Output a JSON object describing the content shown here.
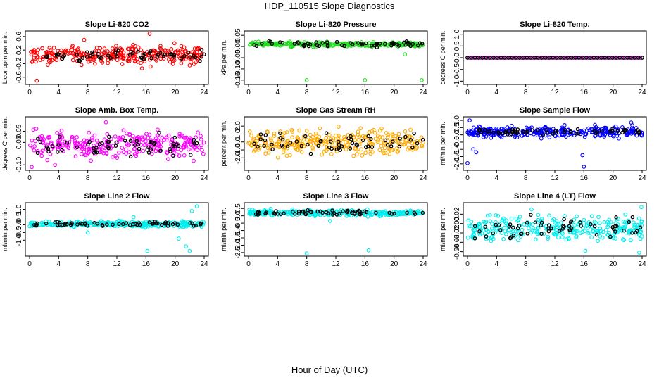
{
  "figure": {
    "title": "HDP_110515  Slope Diagnostics",
    "xlabel": "Hour of Day (UTC)"
  },
  "colors": {
    "red": "#ff0000",
    "green": "#22dd22",
    "magenta": "#ff00ff",
    "orange": "#ffaa00",
    "blue": "#0000ff",
    "cyan": "#00eeee",
    "black": "#000000"
  },
  "chart_data": [
    {
      "type": "scatter",
      "title": "Slope Li-820 CO2",
      "ylabel": "Licor ppm per min.",
      "xlim": [
        0,
        24
      ],
      "xticks": [
        0,
        4,
        8,
        12,
        16,
        20,
        24
      ],
      "ylim": [
        -0.75,
        0.7
      ],
      "yticks": [
        -0.6,
        -0.2,
        0.2,
        0.6
      ],
      "ytick_labels": [
        "-0.6",
        "-0.2",
        "0.2",
        "0.6"
      ],
      "color": "#ff0000",
      "center": 0.05,
      "spread": 0.18,
      "outliers": [
        [
          1.0,
          -0.7
        ],
        [
          16.5,
          0.68
        ],
        [
          7.5,
          0.5
        ]
      ],
      "black_spread": 0.12
    },
    {
      "type": "scatter",
      "title": "Slope Li-820 Pressure",
      "ylabel": "kPa per min.",
      "xlim": [
        0,
        24
      ],
      "xticks": [
        0,
        4,
        8,
        12,
        16,
        20,
        24
      ],
      "ylim": [
        -0.16,
        0.06
      ],
      "yticks": [
        -0.15,
        -0.1,
        -0.05,
        0,
        0.05
      ],
      "ytick_labels": [
        "-0.15",
        "-0.10",
        "-0.05",
        "0.00",
        "0.05"
      ],
      "color": "#22dd22",
      "center": 0.01,
      "spread": 0.006,
      "outliers": [
        [
          8.0,
          -0.15
        ],
        [
          16.0,
          -0.15
        ],
        [
          23.8,
          -0.15
        ],
        [
          21.5,
          -0.035
        ]
      ],
      "black_spread": 0.008
    },
    {
      "type": "scatter",
      "title": "Slope Li-820 Temp.",
      "ylabel": "degrees C per min.",
      "xlim": [
        0,
        24
      ],
      "xticks": [
        0,
        4,
        8,
        12,
        16,
        20,
        24
      ],
      "ylim": [
        -1.05,
        1.05
      ],
      "yticks": [
        -1.0,
        -0.5,
        0.0,
        0.5,
        1.0
      ],
      "ytick_labels": [
        "-1.0",
        "-0.5",
        "0.0",
        "0.5",
        "1.0"
      ],
      "color": "#ff00ff",
      "center": 0.0,
      "spread": 0.0,
      "outliers": [],
      "black_spread": 0.0
    },
    {
      "type": "scatter",
      "title": "Slope Amb. Box Temp.",
      "ylabel": "degrees C per min.",
      "xlim": [
        0,
        24
      ],
      "xticks": [
        0,
        4,
        8,
        12,
        16,
        20,
        24
      ],
      "ylim": [
        -0.115,
        0.105
      ],
      "yticks": [
        -0.1,
        0.0,
        0.05
      ],
      "ytick_labels": [
        "-0.10",
        "0.00",
        "0.05"
      ],
      "color": "#ff00ff",
      "center": -0.01,
      "spread": 0.04,
      "outliers": [
        [
          0.3,
          -0.11
        ],
        [
          10.5,
          0.09
        ],
        [
          3.5,
          -0.1
        ]
      ],
      "black_spread": 0.03
    },
    {
      "type": "scatter",
      "title": "Slope Gas Stream RH",
      "ylabel": "percent per min.",
      "xlim": [
        0,
        24
      ],
      "xticks": [
        0,
        4,
        8,
        12,
        16,
        20,
        24
      ],
      "ylim": [
        -3.3,
        2.9
      ],
      "yticks": [
        -2.0,
        -1.0,
        0.0,
        1.0,
        2.0
      ],
      "ytick_labels": [
        "-2.0",
        "-1.0",
        "0.0",
        "1.0",
        "2.0"
      ],
      "color": "#ffaa00",
      "center": 0.0,
      "spread": 1.0,
      "outliers": [],
      "black_spread": 0.8
    },
    {
      "type": "scatter",
      "title": "Slope Sample Flow",
      "ylabel": "ml/min per min.",
      "xlim": [
        0,
        24
      ],
      "xticks": [
        0,
        4,
        8,
        12,
        16,
        20,
        24
      ],
      "ylim": [
        -2.3,
        1.1
      ],
      "yticks": [
        -2.0,
        -1.5,
        -1.0,
        -0.5,
        0.0,
        0.5,
        1.0
      ],
      "ytick_labels": [
        "-2.0",
        "-1.5",
        "-1.0",
        "-0.5",
        "0.0",
        "0.5",
        "1.0"
      ],
      "color": "#0000ff",
      "center": 0.2,
      "spread": 0.25,
      "outliers": [
        [
          0.0,
          -1.95
        ],
        [
          0.3,
          1.0
        ],
        [
          0.8,
          -1.0
        ],
        [
          1.2,
          -1.2
        ],
        [
          16.0,
          -2.2
        ],
        [
          15.8,
          -1.4
        ],
        [
          22.5,
          0.85
        ]
      ],
      "black_spread": 0.15
    },
    {
      "type": "scatter",
      "title": "Slope Line 2 Flow",
      "ylabel": "ml/min per min.",
      "xlim": [
        0,
        24
      ],
      "xticks": [
        0,
        4,
        8,
        12,
        16,
        20,
        24
      ],
      "ylim": [
        -1.9,
        1.3
      ],
      "yticks": [
        -1.0,
        -0.5,
        0.0,
        0.5,
        1.0
      ],
      "ytick_labels": [
        "-1.0",
        "-0.5",
        "0.0",
        "0.5",
        "1.0"
      ],
      "color": "#00eeee",
      "center": 0.05,
      "spread": 0.12,
      "outliers": [
        [
          16.2,
          -1.7
        ],
        [
          22.0,
          -1.7
        ],
        [
          21.5,
          -1.4
        ],
        [
          23.0,
          1.2
        ],
        [
          22.3,
          0.9
        ],
        [
          8.0,
          -0.5
        ],
        [
          14.3,
          0.5
        ],
        [
          20.5,
          -0.9
        ]
      ],
      "black_spread": 0.1
    },
    {
      "type": "scatter",
      "title": "Slope Line 3 Flow",
      "ylabel": "ml/min per min.",
      "xlim": [
        0,
        24
      ],
      "xticks": [
        0,
        4,
        8,
        12,
        16,
        20,
        24
      ],
      "ylim": [
        -2.6,
        0.75
      ],
      "yticks": [
        -2.5,
        -2.0,
        -1.5,
        -1.0,
        -0.5,
        0.0,
        0.5
      ],
      "ytick_labels": [
        "-2.5",
        "-2.0",
        "-1.5",
        "-1.0",
        "-0.5",
        "0.0",
        "0.5"
      ],
      "color": "#00eeee",
      "center": 0.2,
      "spread": 0.13,
      "outliers": [
        [
          8.0,
          -2.55
        ],
        [
          16.5,
          -2.35
        ],
        [
          11.2,
          -0.35
        ]
      ],
      "black_spread": 0.12
    },
    {
      "type": "scatter",
      "title": "Slope Line 4 (LT) Flow",
      "ylabel": "ml/min per min.",
      "xlim": [
        0,
        24
      ],
      "xticks": [
        0,
        4,
        8,
        12,
        16,
        20,
        24
      ],
      "ylim": [
        -0.065,
        0.04
      ],
      "yticks": [
        -0.06,
        -0.04,
        -0.02,
        0.0,
        0.02
      ],
      "ytick_labels": [
        "-0.06",
        "-0.04",
        "-0.02",
        "0.00",
        "0.02"
      ],
      "color": "#00eeee",
      "center": -0.01,
      "spread": 0.018,
      "outliers": [
        [
          23.6,
          -0.062
        ],
        [
          23.9,
          0.035
        ],
        [
          8.8,
          0.03
        ],
        [
          16.2,
          -0.058
        ]
      ],
      "black_spread": 0.018
    }
  ]
}
